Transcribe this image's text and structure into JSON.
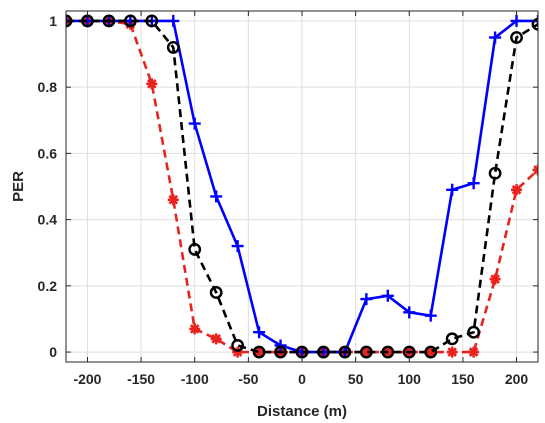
{
  "chart_data": {
    "type": "line",
    "title": "",
    "xlabel": "Distance (m)",
    "ylabel": "PER",
    "xlim": [
      -220,
      220
    ],
    "ylim": [
      -0.03,
      1.03
    ],
    "xticks": [
      -200,
      -150,
      -100,
      -50,
      0,
      50,
      100,
      150,
      200
    ],
    "yticks": [
      0,
      0.2,
      0.4,
      0.6,
      0.8,
      1
    ],
    "grid": true,
    "legend": "none",
    "series": [
      {
        "color": "#0000ff",
        "line_style": "solid",
        "marker": "plus",
        "x": [
          -220,
          -200,
          -180,
          -160,
          -140,
          -120,
          -100,
          -80,
          -60,
          -40,
          -20,
          0,
          20,
          40,
          60,
          80,
          100,
          120,
          140,
          160,
          180,
          200,
          220
        ],
        "y": [
          1,
          1,
          1,
          1,
          1,
          1,
          0.69,
          0.47,
          0.32,
          0.06,
          0.02,
          0,
          0,
          0,
          0.16,
          0.17,
          0.12,
          0.11,
          0.49,
          0.51,
          0.95,
          1,
          1
        ]
      },
      {
        "color": "#000000",
        "line_style": "dashed",
        "marker": "circle",
        "x": [
          -220,
          -200,
          -180,
          -160,
          -140,
          -120,
          -100,
          -80,
          -60,
          -40,
          -20,
          0,
          20,
          40,
          60,
          80,
          100,
          120,
          140,
          160,
          180,
          200,
          220
        ],
        "y": [
          1,
          1,
          1,
          1,
          1,
          0.92,
          0.31,
          0.18,
          0.02,
          0,
          0,
          0,
          0,
          0,
          0,
          0,
          0,
          0,
          0.04,
          0.06,
          0.54,
          0.95,
          0.99
        ]
      },
      {
        "color": "#e8231e",
        "line_style": "dashed",
        "marker": "asterisk",
        "x": [
          -220,
          -200,
          -180,
          -160,
          -140,
          -120,
          -100,
          -80,
          -60,
          -40,
          -20,
          0,
          20,
          40,
          60,
          80,
          100,
          120,
          140,
          160,
          180,
          200,
          220
        ],
        "y": [
          1,
          1,
          1,
          0.99,
          0.81,
          0.46,
          0.07,
          0.04,
          0,
          0,
          0,
          0,
          0,
          0,
          0,
          0,
          0,
          0,
          0,
          0,
          0.22,
          0.49,
          0.55
        ]
      }
    ]
  }
}
